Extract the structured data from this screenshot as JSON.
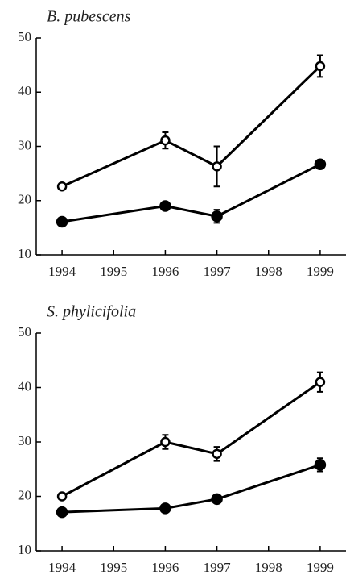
{
  "chart_data": [
    {
      "type": "line",
      "title": "B. pubescens",
      "xlim": [
        1993.5,
        1999.5
      ],
      "xticks": [
        1994,
        1995,
        1996,
        1997,
        1998,
        1999
      ],
      "ylim": [
        10,
        50
      ],
      "yticks": [
        10,
        20,
        30,
        40,
        50
      ],
      "series": [
        {
          "color": "#000000",
          "marker": "open",
          "x": [
            1994,
            1996,
            1997,
            1999
          ],
          "values": [
            22.6,
            31.1,
            26.3,
            44.8
          ],
          "errors": [
            0.5,
            1.5,
            3.7,
            2.0
          ]
        },
        {
          "color": "#000000",
          "marker": "filled",
          "x": [
            1994,
            1996,
            1997,
            1999
          ],
          "values": [
            16.1,
            19.0,
            17.1,
            26.7
          ],
          "errors": [
            0.4,
            0.5,
            1.2,
            0.8
          ]
        }
      ]
    },
    {
      "type": "line",
      "title": "S. phylicifolia",
      "xlim": [
        1993.5,
        1999.5
      ],
      "xticks": [
        1994,
        1995,
        1996,
        1997,
        1998,
        1999
      ],
      "ylim": [
        10,
        50
      ],
      "yticks": [
        10,
        20,
        30,
        40,
        50
      ],
      "series": [
        {
          "color": "#000000",
          "marker": "open",
          "x": [
            1994,
            1996,
            1997,
            1999
          ],
          "values": [
            20.0,
            30.0,
            27.8,
            41.0
          ],
          "errors": [
            0.5,
            1.3,
            1.3,
            1.8
          ]
        },
        {
          "color": "#000000",
          "marker": "filled",
          "x": [
            1994,
            1996,
            1997,
            1999
          ],
          "values": [
            17.1,
            17.8,
            19.5,
            25.8
          ],
          "errors": [
            0.3,
            0.6,
            0.4,
            1.2
          ]
        }
      ]
    }
  ]
}
